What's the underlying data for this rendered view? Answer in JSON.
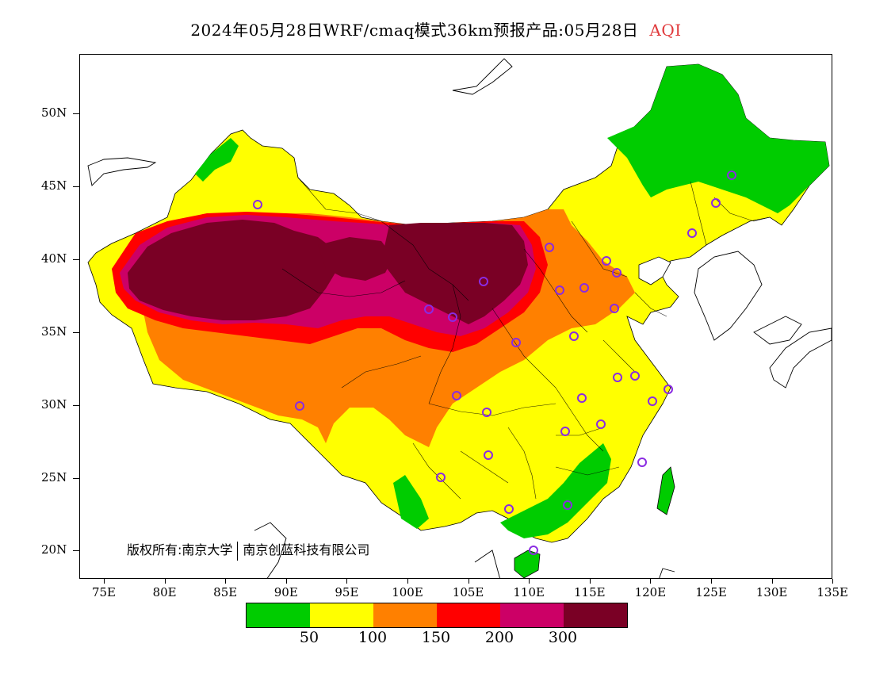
{
  "title": {
    "main": "2024年05月28日WRF/cmaq模式36km预报产品:05月28日",
    "variable": "AQI"
  },
  "copyright": {
    "left": "版权所有:南京大学",
    "right": "南京创蓝科技有限公司"
  },
  "axes": {
    "y_labels": [
      "50N",
      "45N",
      "40N",
      "35N",
      "30N",
      "25N",
      "20N"
    ],
    "x_labels": [
      "75E",
      "80E",
      "85E",
      "90E",
      "95E",
      "100E",
      "105E",
      "110E",
      "115E",
      "120E",
      "125E",
      "130E",
      "135E"
    ]
  },
  "legend": {
    "colors": [
      "#00cc00",
      "#ffff00",
      "#ff8000",
      "#ff0000",
      "#cc0066",
      "#7a0025"
    ],
    "labels": [
      "50",
      "100",
      "150",
      "200",
      "300"
    ]
  },
  "map": {
    "lon_range": [
      73,
      135
    ],
    "lat_range": [
      18,
      54
    ],
    "category_colors": {
      "good": "#00cc00",
      "moderate": "#ffff00",
      "unhealthy_sensitive": "#ff8000",
      "unhealthy": "#ff0000",
      "very_unhealthy": "#cc0066",
      "hazardous": "#7a0025"
    },
    "station_marker_color": "#8a2be2"
  }
}
